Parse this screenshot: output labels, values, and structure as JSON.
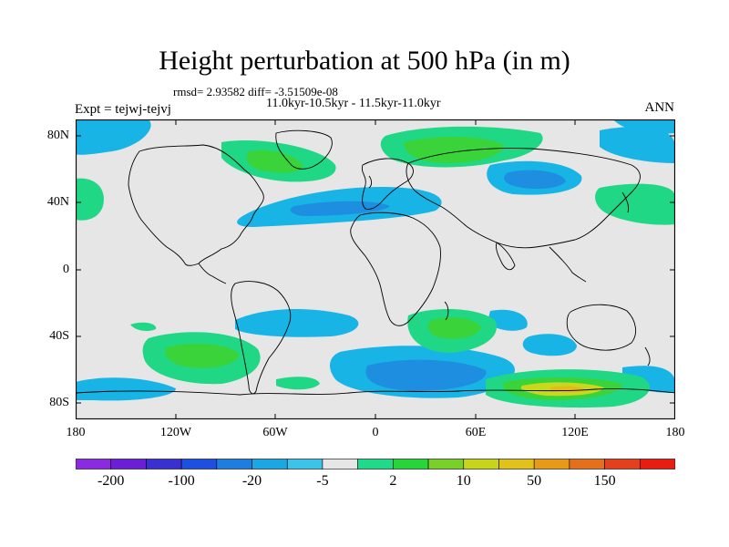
{
  "title": "Height perturbation at 500 hPa (in m)",
  "stats_line": "rmsd= 2.93582 diff= -3.51509e-08",
  "period_line": "11.0kyr-10.5kyr - 11.5kyr-11.0kyr",
  "experiment_label": "Expt = tejwj-tejvj",
  "season_label": "ANN",
  "lat_ticks": [
    "80N",
    "40N",
    "0",
    "40S",
    "80S"
  ],
  "lon_ticks": [
    "180",
    "120W",
    "60W",
    "0",
    "60E",
    "120E",
    "180"
  ],
  "colorbar": {
    "colors": [
      "#8a2be2",
      "#6a1fd6",
      "#3a2fd0",
      "#1f4fe0",
      "#1e7ee0",
      "#1aa7e3",
      "#3dc2e8",
      "#e6e6e6",
      "#21d98a",
      "#27d43a",
      "#7ad02a",
      "#c6d41b",
      "#e0c21a",
      "#e69a18",
      "#e5701c",
      "#e5401d",
      "#e81d12"
    ],
    "labels": [
      "-200",
      "-100",
      "-20",
      "-5",
      "2",
      "10",
      "50",
      "150"
    ]
  },
  "map_colors": {
    "background": "#e6e6e6",
    "neg_light": "#19b4e6",
    "neg_mid": "#1e8ee0",
    "pos_light": "#20d786",
    "pos_mid": "#3ad43a",
    "pos_high": "#c8d81c",
    "pos_peak": "#e3bb1a",
    "coast": "#000000"
  }
}
